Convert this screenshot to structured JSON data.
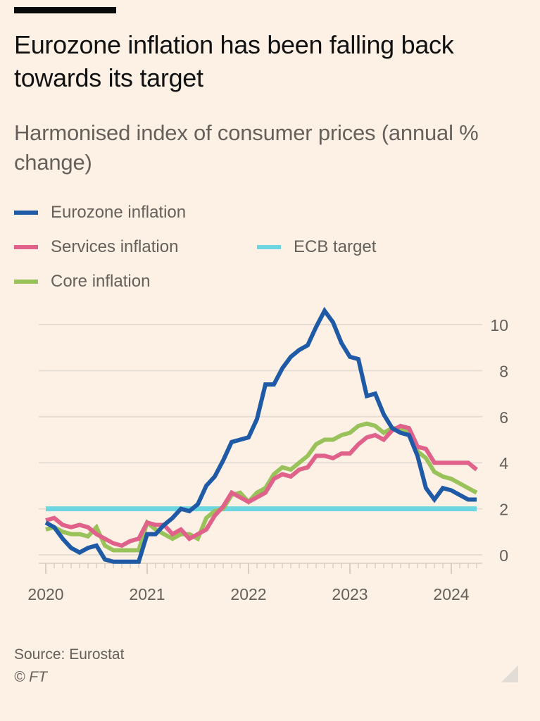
{
  "header": {
    "title": "Eurozone inflation has been falling back towards its target",
    "subtitle": "Harmonised index of consumer prices (annual % change)"
  },
  "legend": [
    {
      "label": "Eurozone inflation",
      "color": "#1f5aa6"
    },
    {
      "label": "Services inflation",
      "color": "#e0628a"
    },
    {
      "label": "ECB target",
      "color": "#6dd6e0"
    },
    {
      "label": "Core inflation",
      "color": "#99c35a"
    }
  ],
  "footer": {
    "source": "Source: Eurostat",
    "copyright": "© FT"
  },
  "chart_data": {
    "type": "line",
    "title": "Eurozone inflation has been falling back towards its target",
    "subtitle": "Harmonised index of consumer prices (annual % change)",
    "xlabel": "",
    "ylabel": "",
    "x_start": "2020-01",
    "x_end": "2024-04",
    "x_ticks": [
      "2020",
      "2021",
      "2022",
      "2023",
      "2024"
    ],
    "y_ticks": [
      0,
      2,
      4,
      6,
      8,
      10
    ],
    "ylim": [
      -0.6,
      10.8
    ],
    "grid": true,
    "y_axis_side": "right",
    "legend_position": "top-left",
    "series": [
      {
        "name": "Eurozone inflation",
        "color": "#1f5aa6",
        "values": [
          1.4,
          1.2,
          0.7,
          0.3,
          0.1,
          0.3,
          0.4,
          -0.2,
          -0.3,
          -0.3,
          -0.3,
          -0.3,
          0.9,
          0.9,
          1.3,
          1.6,
          2.0,
          1.9,
          2.2,
          3.0,
          3.4,
          4.1,
          4.9,
          5.0,
          5.1,
          5.9,
          7.4,
          7.4,
          8.1,
          8.6,
          8.9,
          9.1,
          9.9,
          10.6,
          10.1,
          9.2,
          8.6,
          8.5,
          6.9,
          7.0,
          6.1,
          5.5,
          5.3,
          5.2,
          4.3,
          2.9,
          2.4,
          2.9,
          2.8,
          2.6,
          2.4,
          2.4
        ]
      },
      {
        "name": "Services inflation",
        "color": "#e0628a",
        "values": [
          1.5,
          1.6,
          1.3,
          1.2,
          1.3,
          1.2,
          0.9,
          0.7,
          0.5,
          0.4,
          0.6,
          0.7,
          1.4,
          1.3,
          1.3,
          0.9,
          1.1,
          0.7,
          0.9,
          1.1,
          1.7,
          2.1,
          2.7,
          2.5,
          2.3,
          2.5,
          2.7,
          3.3,
          3.5,
          3.4,
          3.7,
          3.8,
          4.3,
          4.3,
          4.2,
          4.4,
          4.4,
          4.8,
          5.1,
          5.2,
          5.0,
          5.4,
          5.6,
          5.5,
          4.7,
          4.6,
          4.0,
          4.0,
          4.0,
          4.0,
          4.0,
          3.7
        ]
      },
      {
        "name": "Core inflation",
        "color": "#99c35a",
        "values": [
          1.1,
          1.2,
          1.0,
          0.9,
          0.9,
          0.8,
          1.2,
          0.4,
          0.2,
          0.2,
          0.2,
          0.2,
          1.4,
          1.1,
          0.9,
          0.7,
          0.9,
          0.9,
          0.7,
          1.6,
          1.9,
          2.0,
          2.6,
          2.7,
          2.3,
          2.7,
          2.9,
          3.5,
          3.8,
          3.7,
          4.0,
          4.3,
          4.8,
          5.0,
          5.0,
          5.2,
          5.3,
          5.6,
          5.7,
          5.6,
          5.3,
          5.5,
          5.5,
          5.3,
          4.5,
          4.2,
          3.6,
          3.4,
          3.3,
          3.1,
          2.9,
          2.7
        ]
      },
      {
        "name": "ECB target",
        "color": "#6dd6e0",
        "values": [
          2,
          2,
          2,
          2,
          2,
          2,
          2,
          2,
          2,
          2,
          2,
          2,
          2,
          2,
          2,
          2,
          2,
          2,
          2,
          2,
          2,
          2,
          2,
          2,
          2,
          2,
          2,
          2,
          2,
          2,
          2,
          2,
          2,
          2,
          2,
          2,
          2,
          2,
          2,
          2,
          2,
          2,
          2,
          2,
          2,
          2,
          2,
          2,
          2,
          2,
          2,
          2
        ]
      }
    ]
  }
}
